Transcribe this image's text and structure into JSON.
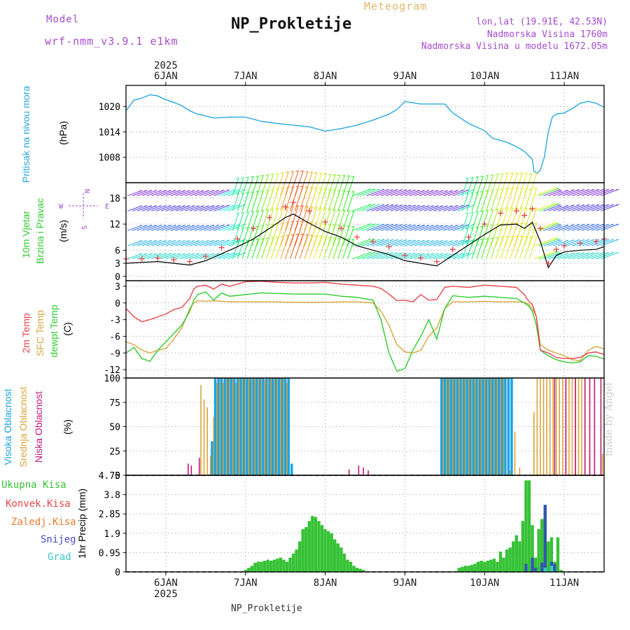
{
  "header": {
    "model_label": "Model",
    "model_name": "wrf-nmm_v3.9.1 e1km",
    "title": "NP_Prokletije",
    "product": "Meteogram",
    "coords": "lon,lat (19.91E, 42.53N)",
    "elevation": "Nadmorska Visina 1760m",
    "model_elevation": "Nadmorska Visina u modelu 1672.05m",
    "footer": "NP_Prokletije",
    "credit": "made by Angel"
  },
  "colors": {
    "pressure": "#29a8e0",
    "temp": "#e8454a",
    "sfc_temp": "#d9a43a",
    "dewpt": "#2fcc2f",
    "high_cloud": "#1aa3e8",
    "mid_cloud": "#d9a43a",
    "low_cloud": "#c0187a",
    "precip_total": "#36c236",
    "precip_convective": "#e8454a",
    "precip_freezing": "#f07a30",
    "snow": "#4a4acc",
    "hail": "#3ac8c8",
    "wind_label": "#2fcc2f",
    "wind_speed_line": "#000000",
    "gust_marker": "#e8454a"
  },
  "chart_data": [
    {
      "type": "line",
      "panel": "pressure",
      "ylabel_main": "Pritisak na nivou mora",
      "unit": "(hPa)",
      "ylim": [
        1002,
        1025
      ],
      "yticks": [
        1008,
        1014,
        1020
      ],
      "x_days": [
        "6JAN",
        "7JAN",
        "8JAN",
        "9JAN",
        "10JAN",
        "11JAN"
      ],
      "year": "2025",
      "x": [
        5.5,
        5.6,
        5.7,
        5.8,
        5.9,
        6.0,
        6.1,
        6.2,
        6.3,
        6.4,
        6.5,
        6.6,
        6.8,
        7.0,
        7.2,
        7.4,
        7.6,
        7.8,
        8.0,
        8.2,
        8.4,
        8.6,
        8.8,
        8.9,
        9.0,
        9.2,
        9.4,
        9.5,
        9.6,
        9.8,
        10.0,
        10.1,
        10.2,
        10.3,
        10.4,
        10.5,
        10.6,
        10.62,
        10.66,
        10.7,
        10.75,
        10.8,
        10.85,
        10.9,
        11.0,
        11.1,
        11.2,
        11.3,
        11.4,
        11.5
      ],
      "series": [
        {
          "values": [
            1019.0,
            1021.5,
            1022.0,
            1022.8,
            1022.5,
            1021.6,
            1021.0,
            1020.2,
            1019.0,
            1018.2,
            1017.8,
            1017.3,
            1017.5,
            1017.5,
            1016.5,
            1016.0,
            1015.6,
            1015.2,
            1014.2,
            1014.8,
            1015.6,
            1016.8,
            1018.2,
            1019.3,
            1021.2,
            1020.6,
            1020.6,
            1020.6,
            1018.5,
            1016.0,
            1014.3,
            1012.5,
            1012.0,
            1011.4,
            1010.5,
            1009.4,
            1007.5,
            1004.8,
            1004.2,
            1005.0,
            1008.0,
            1014.0,
            1017.5,
            1018.2,
            1018.5,
            1019.5,
            1020.8,
            1021.2,
            1020.8,
            1019.8
          ]
        }
      ]
    },
    {
      "type": "wind",
      "panel": "wind",
      "ylabel_main": "10m Vjetar",
      "ylabel_sub": "Brzina i Pravac",
      "unit": "(m/s)",
      "compass": [
        "N",
        "W",
        "E",
        "S"
      ],
      "ylim": [
        -1,
        21.5
      ],
      "yticks": [
        0,
        3,
        6,
        12,
        18
      ],
      "x": [
        5.5,
        5.7,
        5.9,
        6.1,
        6.3,
        6.5,
        6.7,
        6.9,
        7.1,
        7.3,
        7.5,
        7.6,
        7.8,
        8.0,
        8.2,
        8.4,
        8.6,
        8.8,
        9.0,
        9.2,
        9.4,
        9.6,
        9.8,
        10.0,
        10.2,
        10.4,
        10.5,
        10.6,
        10.7,
        10.8,
        10.9,
        11.0,
        11.2,
        11.4,
        11.5
      ],
      "series": [
        {
          "name": "speed",
          "values": [
            3.0,
            3.2,
            3.4,
            3.0,
            2.6,
            3.6,
            5.2,
            6.8,
            8.6,
            11.0,
            13.5,
            14.3,
            12.2,
            10.3,
            9.0,
            7.0,
            6.0,
            5.0,
            3.6,
            3.0,
            2.4,
            4.8,
            7.2,
            9.6,
            11.8,
            12.0,
            11.0,
            12.4,
            8.0,
            2.0,
            4.8,
            5.6,
            6.0,
            6.2,
            6.8
          ]
        },
        {
          "name": "gust",
          "values": [
            4.0,
            4.0,
            4.2,
            3.8,
            3.4,
            4.6,
            6.6,
            8.6,
            11.0,
            13.5,
            16.0,
            17.0,
            15.0,
            12.5,
            11.0,
            9.0,
            8.0,
            6.8,
            4.8,
            4.2,
            3.4,
            6.2,
            9.0,
            12.0,
            14.5,
            15.0,
            14.0,
            15.5,
            11.0,
            3.0,
            6.2,
            7.0,
            7.6,
            8.0,
            8.6
          ]
        }
      ]
    },
    {
      "type": "line",
      "panel": "temperature",
      "ylabel_main": "2m Temp",
      "ylabel_sub": "SFC Temp",
      "ylabel_sub2": "dewpt Temp",
      "unit": "(C)",
      "ylim": [
        -13.5,
        4
      ],
      "yticks": [
        -12,
        -9,
        -6,
        -3,
        0,
        3
      ],
      "x": [
        5.5,
        5.6,
        5.7,
        5.8,
        5.9,
        6.0,
        6.1,
        6.2,
        6.3,
        6.35,
        6.4,
        6.5,
        6.6,
        6.7,
        6.8,
        7.0,
        7.2,
        7.4,
        7.6,
        7.8,
        8.0,
        8.2,
        8.4,
        8.6,
        8.7,
        8.8,
        8.9,
        9.0,
        9.1,
        9.2,
        9.3,
        9.4,
        9.5,
        9.6,
        9.8,
        10.0,
        10.2,
        10.4,
        10.5,
        10.55,
        10.6,
        10.65,
        10.7,
        10.8,
        10.9,
        11.0,
        11.1,
        11.2,
        11.3,
        11.4,
        11.5
      ],
      "series": [
        {
          "name": "2m Temp",
          "values": [
            -1.0,
            -2.5,
            -3.4,
            -3.0,
            -2.5,
            -2.0,
            -1.2,
            -0.8,
            0.8,
            2.5,
            3.0,
            3.2,
            2.5,
            3.4,
            3.0,
            3.8,
            3.9,
            3.7,
            3.6,
            3.6,
            3.7,
            3.4,
            3.2,
            3.0,
            2.6,
            1.6,
            0.4,
            0.5,
            0.2,
            1.5,
            0.5,
            0.6,
            2.8,
            3.0,
            2.8,
            3.2,
            3.0,
            2.8,
            1.5,
            0.4,
            -0.3,
            -2.5,
            -8.5,
            -9.0,
            -9.8,
            -10.0,
            -10.0,
            -9.8,
            -9.0,
            -8.8,
            -9.3
          ]
        },
        {
          "name": "SFC Temp",
          "values": [
            -7.0,
            -7.5,
            -8.5,
            -9.0,
            -8.5,
            -8.2,
            -6.5,
            -4.5,
            -1.0,
            0.0,
            0.4,
            0.3,
            0.4,
            0.3,
            0.2,
            0.2,
            0.2,
            0.2,
            0.1,
            0.1,
            0.1,
            0.2,
            0.2,
            0.0,
            -1.5,
            -4.0,
            -7.5,
            -8.8,
            -9.0,
            -8.5,
            -6.0,
            -4.5,
            -1.0,
            0.2,
            0.2,
            0.3,
            0.2,
            0.2,
            0.1,
            -0.2,
            -1.0,
            -2.5,
            -7.5,
            -8.5,
            -9.0,
            -9.5,
            -10.2,
            -10.4,
            -8.5,
            -7.8,
            -8.3
          ]
        },
        {
          "name": "dewpt Temp",
          "values": [
            -9.0,
            -8.0,
            -10.0,
            -10.5,
            -8.5,
            -7.0,
            -5.5,
            -4.0,
            -1.5,
            0.5,
            1.5,
            2.0,
            0.5,
            1.8,
            1.2,
            1.5,
            1.8,
            1.7,
            1.6,
            1.6,
            1.6,
            1.2,
            1.0,
            0.5,
            -3.0,
            -9.0,
            -12.3,
            -11.8,
            -8.5,
            -6.0,
            -3.0,
            -6.5,
            -1.0,
            1.3,
            1.0,
            1.2,
            1.0,
            0.8,
            0.0,
            -0.5,
            -1.5,
            -4.0,
            -8.5,
            -9.5,
            -10.2,
            -10.6,
            -10.8,
            -10.6,
            -9.5,
            -9.6,
            -10.1
          ]
        }
      ]
    },
    {
      "type": "bar",
      "panel": "clouds",
      "ylabel_main": "Visoka Oblacnost",
      "ylabel_sub": "Srednja Oblacnost",
      "ylabel_sub2": "Niska Oblacnost",
      "unit": "(%)",
      "ylim": [
        0,
        100
      ],
      "yticks": [
        0,
        25,
        50,
        75,
        100
      ],
      "series": [
        {
          "name": "Visoka Oblacnost",
          "x": [
            6.58,
            6.62,
            6.66,
            6.7,
            6.74,
            6.78,
            6.82,
            6.86,
            6.9,
            6.94,
            6.98,
            7.02,
            7.06,
            7.1,
            7.14,
            7.18,
            7.22,
            7.26,
            7.3,
            7.34,
            7.38,
            7.42,
            7.46,
            7.5,
            7.54,
            7.58,
            9.46,
            9.5,
            9.54,
            9.58,
            9.62,
            9.66,
            9.7,
            9.74,
            9.78,
            9.82,
            9.86,
            9.9,
            9.94,
            9.98,
            10.02,
            10.06,
            10.1,
            10.14,
            10.18,
            10.22,
            10.26,
            10.3,
            10.34
          ],
          "values": [
            35,
            100,
            100,
            100,
            100,
            100,
            100,
            100,
            100,
            100,
            100,
            100,
            100,
            100,
            100,
            100,
            100,
            100,
            100,
            100,
            100,
            100,
            100,
            100,
            100,
            12,
            100,
            100,
            100,
            100,
            100,
            100,
            100,
            100,
            100,
            100,
            100,
            100,
            100,
            100,
            100,
            100,
            100,
            100,
            100,
            100,
            100,
            100,
            100
          ]
        },
        {
          "name": "Srednja Oblacnost",
          "x": [
            6.44,
            6.48,
            6.52,
            6.56,
            6.6,
            6.64,
            6.68,
            6.72,
            6.76,
            6.8,
            6.84,
            6.88,
            6.92,
            6.96,
            7.0,
            7.04,
            7.08,
            7.12,
            7.16,
            7.2,
            7.24,
            7.28,
            7.32,
            7.36,
            7.4,
            7.44,
            7.48,
            7.52,
            9.48,
            9.52,
            9.56,
            9.6,
            9.64,
            9.68,
            9.72,
            9.76,
            9.8,
            9.84,
            9.88,
            9.92,
            9.96,
            10.0,
            10.04,
            10.08,
            10.12,
            10.16,
            10.2,
            10.24,
            10.32,
            10.38,
            10.44,
            10.62,
            10.66,
            10.7,
            10.74,
            10.78,
            10.82,
            10.86,
            10.9,
            10.94,
            10.98,
            11.02,
            11.06,
            11.1,
            11.14,
            11.18,
            11.22,
            11.26,
            11.32,
            11.48
          ],
          "values": [
            93,
            78,
            70,
            20,
            60,
            95,
            100,
            95,
            100,
            100,
            100,
            95,
            100,
            100,
            100,
            100,
            100,
            100,
            100,
            100,
            98,
            100,
            100,
            100,
            100,
            100,
            100,
            95,
            100,
            100,
            100,
            100,
            100,
            100,
            100,
            100,
            100,
            100,
            100,
            100,
            100,
            100,
            100,
            100,
            100,
            100,
            100,
            100,
            5,
            45,
            8,
            65,
            100,
            100,
            100,
            100,
            100,
            100,
            100,
            100,
            100,
            100,
            100,
            100,
            100,
            100,
            100,
            100,
            20,
            22
          ]
        },
        {
          "name": "Niska Oblacnost",
          "x": [
            6.28,
            6.32,
            6.42,
            8.3,
            8.42,
            8.48,
            8.54,
            10.88,
            11.02,
            11.14,
            11.26,
            11.32,
            11.38,
            11.46
          ],
          "values": [
            12,
            10,
            18,
            6,
            10,
            8,
            5,
            100,
            100,
            100,
            100,
            100,
            100,
            100
          ]
        }
      ]
    },
    {
      "type": "bar",
      "panel": "precipitation",
      "ylabel_main": "1hr Precip (mm)",
      "legend": [
        "Ukupna Kisa",
        "Konvek.Kisa",
        "Zaledj.Kisa",
        "Snijeg",
        "Grad"
      ],
      "ylim": [
        0,
        4.75
      ],
      "yticks": [
        0,
        0.95,
        1.9,
        2.85,
        3.8,
        4.75
      ],
      "series": [
        {
          "name": "Ukupna Kisa",
          "x": [
            7.0,
            7.04,
            7.08,
            7.12,
            7.16,
            7.2,
            7.24,
            7.28,
            7.32,
            7.36,
            7.4,
            7.44,
            7.48,
            7.52,
            7.56,
            7.6,
            7.64,
            7.68,
            7.72,
            7.76,
            7.8,
            7.84,
            7.88,
            7.92,
            7.96,
            8.0,
            8.04,
            8.08,
            8.12,
            8.16,
            8.2,
            8.24,
            8.28,
            8.32,
            8.36,
            8.4,
            8.44,
            8.48,
            9.68,
            9.72,
            9.76,
            9.8,
            9.84,
            9.88,
            9.92,
            9.96,
            10.0,
            10.04,
            10.08,
            10.12,
            10.16,
            10.2,
            10.24,
            10.28,
            10.32,
            10.36,
            10.4,
            10.44,
            10.48,
            10.52,
            10.56,
            10.6,
            10.64,
            10.68,
            10.72,
            10.76,
            10.8,
            10.84,
            10.88,
            10.92,
            10.96,
            11.0
          ],
          "values": [
            0.1,
            0.2,
            0.3,
            0.45,
            0.5,
            0.5,
            0.55,
            0.6,
            0.55,
            0.6,
            0.65,
            0.7,
            0.6,
            0.5,
            0.7,
            0.9,
            1.1,
            1.5,
            2.1,
            2.2,
            2.5,
            2.75,
            2.7,
            2.5,
            2.3,
            2.1,
            2.0,
            1.9,
            1.6,
            1.4,
            1.2,
            0.9,
            0.6,
            0.5,
            0.3,
            0.2,
            0.15,
            0.1,
            0.2,
            0.25,
            0.3,
            0.3,
            0.35,
            0.4,
            0.5,
            0.55,
            0.5,
            0.55,
            0.6,
            0.65,
            0.5,
            1.0,
            0.7,
            1.1,
            1.2,
            1.5,
            1.8,
            1.5,
            2.5,
            4.5,
            4.5,
            2.3,
            0.7,
            2.1,
            2.6,
            2.5,
            1.5,
            1.7,
            0.5,
            1.7,
            0.1,
            0.0
          ]
        },
        {
          "name": "Snijeg",
          "x": [
            10.52,
            10.6,
            10.64,
            10.72,
            10.76,
            10.84,
            10.88
          ],
          "values": [
            0.4,
            0.7,
            0.2,
            0.45,
            3.3,
            0.5,
            0.4
          ]
        },
        {
          "name": "Grad",
          "x": [
            10.76,
            10.84
          ],
          "values": [
            0.2,
            0.3
          ]
        }
      ]
    }
  ]
}
